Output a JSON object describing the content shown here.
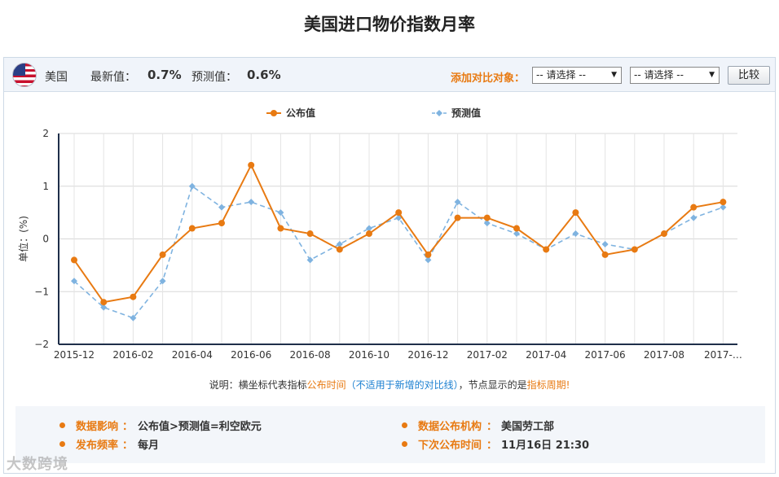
{
  "page": {
    "title": "美国进口物价指数月率"
  },
  "header": {
    "country": "美国",
    "latest_label": "最新值：",
    "latest_value": "0.7%",
    "forecast_label": "预测值：",
    "forecast_value": "0.6%",
    "compare_label": "添加对比对象：",
    "select1": "-- 请选择 --",
    "select2": "-- 请选择 --",
    "compare_button": "比较"
  },
  "colors": {
    "published": "#e87a12",
    "forecast": "#7fb3e0",
    "accent": "#e87a12"
  },
  "chart_data": {
    "type": "line",
    "ylabel": "单位：(%)",
    "ylim": [
      -2,
      2
    ],
    "yticks": [
      2,
      1,
      0,
      -1,
      -2
    ],
    "grid": true,
    "legend_position": "top-center",
    "x": [
      "2015-12",
      "2016-01",
      "2016-02",
      "2016-03",
      "2016-04",
      "2016-05",
      "2016-06",
      "2016-07",
      "2016-08",
      "2016-09",
      "2016-10",
      "2016-11",
      "2016-12",
      "2017-01",
      "2017-02",
      "2017-03",
      "2017-04",
      "2017-05",
      "2017-06",
      "2017-07",
      "2017-08",
      "2017-09",
      "2017-10"
    ],
    "xtick_labels": [
      {
        "index": 0,
        "label": "2015-12"
      },
      {
        "index": 2,
        "label": "2016-02"
      },
      {
        "index": 4,
        "label": "2016-04"
      },
      {
        "index": 6,
        "label": "2016-06"
      },
      {
        "index": 8,
        "label": "2016-08"
      },
      {
        "index": 10,
        "label": "2016-10"
      },
      {
        "index": 12,
        "label": "2016-12"
      },
      {
        "index": 14,
        "label": "2017-02"
      },
      {
        "index": 16,
        "label": "2017-04"
      },
      {
        "index": 18,
        "label": "2017-06"
      },
      {
        "index": 20,
        "label": "2017-08"
      },
      {
        "index": 22,
        "label": "2017-…"
      }
    ],
    "series": [
      {
        "name": "公布值",
        "values": [
          -0.4,
          -1.2,
          -1.1,
          -0.3,
          0.2,
          0.3,
          1.4,
          0.2,
          0.1,
          -0.2,
          0.1,
          0.5,
          -0.3,
          0.4,
          0.4,
          0.2,
          -0.2,
          0.5,
          -0.3,
          -0.2,
          0.1,
          0.6,
          0.7
        ]
      },
      {
        "name": "预测值",
        "values": [
          -0.8,
          -1.3,
          -1.5,
          -0.8,
          1.0,
          0.6,
          0.7,
          0.5,
          -0.4,
          -0.1,
          0.2,
          0.4,
          -0.4,
          0.7,
          0.3,
          0.1,
          -0.2,
          0.1,
          -0.1,
          -0.2,
          0.1,
          0.4,
          0.6
        ]
      }
    ]
  },
  "note": {
    "prefix": "说明：横坐标代表指标",
    "hl1": "公布时间",
    "paren": "（不适用于新增的对比线）",
    "mid": "，节点显示的是",
    "hl2": "指标周期!"
  },
  "info": {
    "impact_label": "数据影响",
    "impact_value": "公布值>预测值=利空欧元",
    "agency_label": "数据公布机构",
    "agency_value": "美国劳工部",
    "freq_label": "发布频率",
    "freq_value": "每月",
    "next_label": "下次公布时间",
    "next_value": "11月16日 21:30"
  },
  "watermark": "大数跨境"
}
